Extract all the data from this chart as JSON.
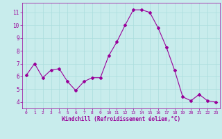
{
  "x": [
    0,
    1,
    2,
    3,
    4,
    5,
    6,
    7,
    8,
    9,
    10,
    11,
    12,
    13,
    14,
    15,
    16,
    17,
    18,
    19,
    20,
    21,
    22,
    23
  ],
  "y": [
    6.1,
    7.0,
    5.9,
    6.5,
    6.6,
    5.6,
    4.9,
    5.6,
    5.9,
    5.9,
    7.6,
    8.7,
    10.0,
    11.2,
    11.2,
    11.0,
    9.8,
    8.3,
    6.5,
    4.4,
    4.1,
    4.6,
    4.1,
    4.0
  ],
  "line_color": "#990099",
  "marker": "D",
  "marker_size": 2,
  "background_color": "#c8ecec",
  "grid_color": "#aadddd",
  "xlabel": "Windchill (Refroidissement éolien,°C)",
  "xlabel_color": "#990099",
  "tick_color": "#990099",
  "ylim": [
    3.5,
    11.75
  ],
  "xlim": [
    -0.5,
    23.5
  ],
  "yticks": [
    4,
    5,
    6,
    7,
    8,
    9,
    10,
    11
  ],
  "xticks": [
    0,
    1,
    2,
    3,
    4,
    5,
    6,
    7,
    8,
    9,
    10,
    11,
    12,
    13,
    14,
    15,
    16,
    17,
    18,
    19,
    20,
    21,
    22,
    23
  ],
  "title": "",
  "figsize": [
    3.2,
    2.0
  ],
  "dpi": 100
}
